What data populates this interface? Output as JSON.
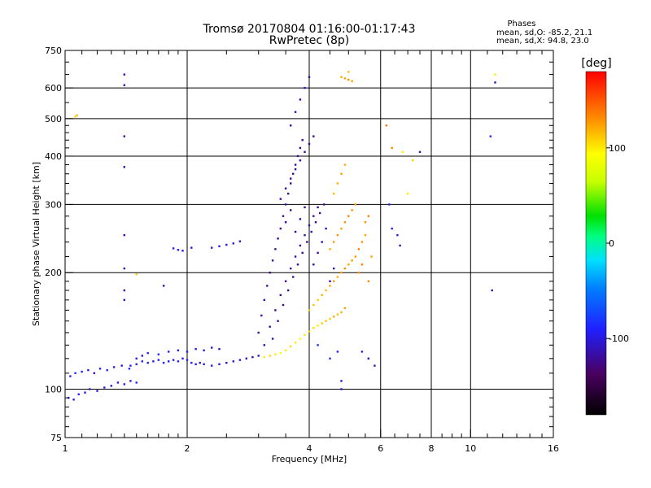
{
  "chart_data": {
    "type": "scatter",
    "title": "Tromsø 20170804 01:16:00-01:17:43",
    "subtitle": "RwPretec (8p)",
    "xlabel": "Frequency [MHz]",
    "ylabel": "Stationary phase Virtual Height [km]",
    "x_scale": "log",
    "y_scale": "log",
    "xlim": [
      1,
      16
    ],
    "ylim": [
      75,
      750
    ],
    "grid": true,
    "x_ticks": [
      1,
      2,
      4,
      6,
      8,
      10,
      16
    ],
    "x_tick_labels": [
      "1",
      "2",
      "4",
      "6",
      "8",
      "10",
      "16"
    ],
    "x_gridlines": [
      2,
      4,
      6,
      8,
      10
    ],
    "y_ticks": [
      75,
      100,
      200,
      300,
      400,
      500,
      600,
      750
    ],
    "y_tick_labels": [
      "75",
      "100",
      "200",
      "300",
      "400",
      "500",
      "600",
      "750"
    ],
    "y_gridlines": [
      100,
      200,
      300,
      400,
      500,
      600
    ],
    "phases": {
      "title": "Phases",
      "line_o": "mean, sd,O: -85.2, 21.1",
      "line_x": "mean, sd,X:  94.8, 23.0"
    },
    "colorbar": {
      "label": "[deg]",
      "range": [
        -180,
        180
      ],
      "ticks": [
        100,
        0,
        -100
      ],
      "tick_labels": [
        "100",
        "0",
        "-100"
      ]
    },
    "series": [
      {
        "points": [
          [
            1.02,
            95,
            -95
          ],
          [
            1.05,
            94,
            -95
          ],
          [
            1.08,
            97,
            -90
          ],
          [
            1.12,
            98,
            -100
          ],
          [
            1.15,
            100,
            -105
          ],
          [
            1.2,
            99,
            -100
          ],
          [
            1.25,
            101,
            -95
          ],
          [
            1.3,
            102,
            -105
          ],
          [
            1.35,
            104,
            -100
          ],
          [
            1.4,
            103,
            -95
          ],
          [
            1.45,
            105,
            -100
          ],
          [
            1.5,
            104,
            -90
          ],
          [
            1.03,
            108,
            -85
          ],
          [
            1.06,
            110,
            -80
          ],
          [
            1.1,
            111,
            -90
          ],
          [
            1.14,
            112,
            -95
          ],
          [
            1.18,
            110,
            -100
          ],
          [
            1.22,
            113,
            -95
          ],
          [
            1.27,
            112,
            -90
          ],
          [
            1.32,
            114,
            -95
          ],
          [
            1.38,
            115,
            -100
          ],
          [
            1.44,
            113,
            -85
          ],
          [
            1.5,
            116,
            -95
          ],
          [
            1.55,
            118,
            -90
          ],
          [
            1.6,
            117,
            -100
          ],
          [
            1.65,
            118,
            -95
          ],
          [
            1.7,
            119,
            -100
          ],
          [
            1.75,
            117,
            -90
          ],
          [
            1.8,
            118,
            -95
          ],
          [
            1.85,
            119,
            -100
          ],
          [
            1.9,
            118,
            -90
          ],
          [
            1.95,
            120,
            -95
          ],
          [
            2.0,
            119,
            -90
          ],
          [
            2.05,
            117,
            -95
          ],
          [
            2.1,
            116,
            -100
          ],
          [
            2.15,
            117,
            -105
          ],
          [
            2.2,
            116,
            -100
          ],
          [
            2.3,
            115,
            -95
          ],
          [
            2.4,
            116,
            -100
          ],
          [
            2.5,
            117,
            -105
          ],
          [
            2.6,
            118,
            -110
          ],
          [
            2.7,
            119,
            -105
          ],
          [
            2.8,
            120,
            -110
          ],
          [
            2.9,
            121,
            -115
          ],
          [
            3.0,
            122,
            -110
          ],
          [
            3.1,
            121,
            100
          ],
          [
            3.2,
            122,
            105
          ],
          [
            3.3,
            123,
            100
          ],
          [
            3.4,
            124,
            95
          ],
          [
            3.5,
            126,
            100
          ],
          [
            3.6,
            129,
            105
          ],
          [
            3.7,
            132,
            100
          ],
          [
            3.8,
            135,
            95
          ],
          [
            3.9,
            138,
            100
          ],
          [
            4.0,
            141,
            110
          ],
          [
            4.1,
            144,
            105
          ],
          [
            4.2,
            146,
            100
          ],
          [
            4.3,
            148,
            110
          ],
          [
            4.4,
            150,
            115
          ],
          [
            4.5,
            152,
            110
          ],
          [
            4.6,
            154,
            120
          ],
          [
            4.7,
            156,
            115
          ],
          [
            4.8,
            158,
            120
          ],
          [
            4.9,
            162,
            125
          ],
          [
            1.45,
            115,
            -90
          ],
          [
            1.5,
            120,
            -95
          ],
          [
            1.55,
            122,
            -100
          ],
          [
            1.6,
            124,
            -90
          ],
          [
            1.7,
            123,
            -85
          ],
          [
            1.8,
            125,
            -95
          ],
          [
            1.9,
            126,
            -100
          ],
          [
            2.0,
            125,
            -90
          ],
          [
            2.1,
            127,
            -95
          ],
          [
            2.2,
            126,
            -100
          ],
          [
            2.3,
            128,
            -110
          ],
          [
            2.4,
            127,
            -105
          ],
          [
            1.85,
            231,
            -95
          ],
          [
            1.9,
            229,
            -90
          ],
          [
            1.95,
            228,
            -100
          ],
          [
            2.3,
            232,
            -95
          ],
          [
            2.4,
            234,
            -100
          ],
          [
            2.5,
            236,
            -95
          ],
          [
            2.6,
            238,
            -100
          ],
          [
            2.7,
            241,
            -110
          ],
          [
            3.0,
            140,
            -115
          ],
          [
            3.05,
            155,
            -120
          ],
          [
            3.1,
            170,
            -115
          ],
          [
            3.15,
            185,
            -120
          ],
          [
            3.2,
            200,
            -125
          ],
          [
            3.25,
            215,
            -120
          ],
          [
            3.3,
            230,
            -115
          ],
          [
            3.35,
            245,
            -120
          ],
          [
            3.4,
            260,
            -125
          ],
          [
            3.45,
            280,
            -120
          ],
          [
            3.5,
            300,
            -115
          ],
          [
            3.55,
            320,
            -120
          ],
          [
            3.6,
            340,
            -125
          ],
          [
            3.65,
            360,
            -120
          ],
          [
            3.7,
            380,
            -115
          ],
          [
            3.75,
            400,
            -120
          ],
          [
            3.8,
            420,
            -125
          ],
          [
            3.85,
            440,
            -120
          ],
          [
            3.1,
            130,
            -110
          ],
          [
            3.2,
            145,
            -115
          ],
          [
            3.3,
            160,
            -120
          ],
          [
            3.4,
            175,
            -125
          ],
          [
            3.5,
            190,
            -120
          ],
          [
            3.6,
            205,
            -115
          ],
          [
            3.7,
            220,
            -120
          ],
          [
            3.8,
            235,
            -125
          ],
          [
            3.9,
            250,
            -120
          ],
          [
            4.0,
            265,
            -115
          ],
          [
            4.1,
            280,
            -120
          ],
          [
            4.2,
            295,
            -125
          ],
          [
            3.25,
            135,
            -115
          ],
          [
            3.35,
            150,
            -120
          ],
          [
            3.45,
            165,
            -125
          ],
          [
            3.55,
            180,
            -120
          ],
          [
            3.65,
            195,
            -115
          ],
          [
            3.75,
            210,
            -120
          ],
          [
            3.85,
            225,
            -125
          ],
          [
            3.95,
            240,
            -120
          ],
          [
            4.05,
            255,
            -115
          ],
          [
            4.15,
            270,
            -120
          ],
          [
            4.25,
            285,
            -125
          ],
          [
            4.35,
            300,
            -120
          ],
          [
            3.4,
            310,
            -120
          ],
          [
            3.5,
            330,
            -115
          ],
          [
            3.6,
            350,
            -120
          ],
          [
            3.7,
            370,
            -125
          ],
          [
            3.8,
            390,
            -120
          ],
          [
            3.9,
            410,
            -115
          ],
          [
            4.0,
            430,
            -120
          ],
          [
            4.1,
            450,
            -125
          ],
          [
            3.6,
            480,
            -120
          ],
          [
            3.7,
            520,
            -115
          ],
          [
            3.8,
            560,
            -120
          ],
          [
            3.9,
            600,
            -110
          ],
          [
            4.0,
            640,
            -115
          ],
          [
            3.5,
            270,
            -120
          ],
          [
            3.6,
            290,
            -125
          ],
          [
            3.7,
            255,
            -120
          ],
          [
            3.8,
            275,
            -115
          ],
          [
            3.9,
            295,
            -120
          ],
          [
            4.1,
            210,
            -115
          ],
          [
            4.2,
            225,
            -120
          ],
          [
            4.3,
            240,
            -110
          ],
          [
            4.4,
            260,
            -105
          ],
          [
            4.5,
            190,
            -115
          ],
          [
            4.6,
            205,
            -110
          ],
          [
            4.0,
            160,
            110
          ],
          [
            4.1,
            165,
            115
          ],
          [
            4.2,
            170,
            110
          ],
          [
            4.3,
            175,
            120
          ],
          [
            4.4,
            180,
            115
          ],
          [
            4.5,
            185,
            120
          ],
          [
            4.6,
            190,
            125
          ],
          [
            4.7,
            195,
            120
          ],
          [
            4.8,
            200,
            125
          ],
          [
            4.9,
            205,
            130
          ],
          [
            5.0,
            210,
            125
          ],
          [
            5.1,
            215,
            130
          ],
          [
            4.5,
            230,
            120
          ],
          [
            4.6,
            240,
            125
          ],
          [
            4.7,
            250,
            130
          ],
          [
            4.8,
            260,
            125
          ],
          [
            4.9,
            270,
            130
          ],
          [
            5.0,
            280,
            135
          ],
          [
            5.1,
            290,
            130
          ],
          [
            5.2,
            300,
            125
          ],
          [
            4.6,
            320,
            115
          ],
          [
            4.7,
            340,
            120
          ],
          [
            4.8,
            360,
            125
          ],
          [
            4.9,
            380,
            120
          ],
          [
            5.2,
            220,
            130
          ],
          [
            5.3,
            230,
            135
          ],
          [
            5.4,
            240,
            130
          ],
          [
            5.5,
            250,
            125
          ],
          [
            5.3,
            200,
            130
          ],
          [
            5.4,
            210,
            135
          ],
          [
            5.5,
            270,
            130
          ],
          [
            5.6,
            280,
            135
          ],
          [
            5.7,
            220,
            125
          ],
          [
            5.6,
            190,
            130
          ],
          [
            4.8,
            640,
            120
          ],
          [
            4.9,
            635,
            125
          ],
          [
            5.0,
            630,
            130
          ],
          [
            5.1,
            625,
            125
          ],
          [
            5.0,
            660,
            115
          ],
          [
            6.2,
            480,
            140
          ],
          [
            6.4,
            420,
            135
          ],
          [
            6.8,
            410,
            100
          ],
          [
            7.2,
            390,
            110
          ],
          [
            7.0,
            320,
            100
          ],
          [
            6.3,
            300,
            -95
          ],
          [
            6.6,
            250,
            -100
          ],
          [
            6.7,
            235,
            -105
          ],
          [
            6.4,
            260,
            -95
          ],
          [
            7.5,
            410,
            -110
          ],
          [
            1.06,
            506,
            110
          ],
          [
            1.07,
            510,
            115
          ],
          [
            1.4,
            650,
            -120
          ],
          [
            1.4,
            610,
            -115
          ],
          [
            1.4,
            450,
            -120
          ],
          [
            1.4,
            375,
            -115
          ],
          [
            1.4,
            250,
            -120
          ],
          [
            1.4,
            205,
            -115
          ],
          [
            1.4,
            180,
            -120
          ],
          [
            1.4,
            170,
            -110
          ],
          [
            1.5,
            198,
            110
          ],
          [
            1.75,
            185,
            -115
          ],
          [
            2.05,
            232,
            -105
          ],
          [
            11.5,
            650,
            100
          ],
          [
            11.5,
            620,
            -110
          ],
          [
            11.2,
            450,
            -90
          ],
          [
            11.3,
            180,
            -115
          ],
          [
            4.2,
            130,
            -80
          ],
          [
            4.5,
            120,
            -85
          ],
          [
            4.7,
            125,
            -90
          ],
          [
            5.4,
            125,
            -95
          ],
          [
            4.8,
            105,
            -100
          ],
          [
            4.8,
            100,
            -105
          ],
          [
            5.6,
            120,
            -115
          ],
          [
            5.8,
            115,
            -110
          ]
        ]
      }
    ]
  }
}
